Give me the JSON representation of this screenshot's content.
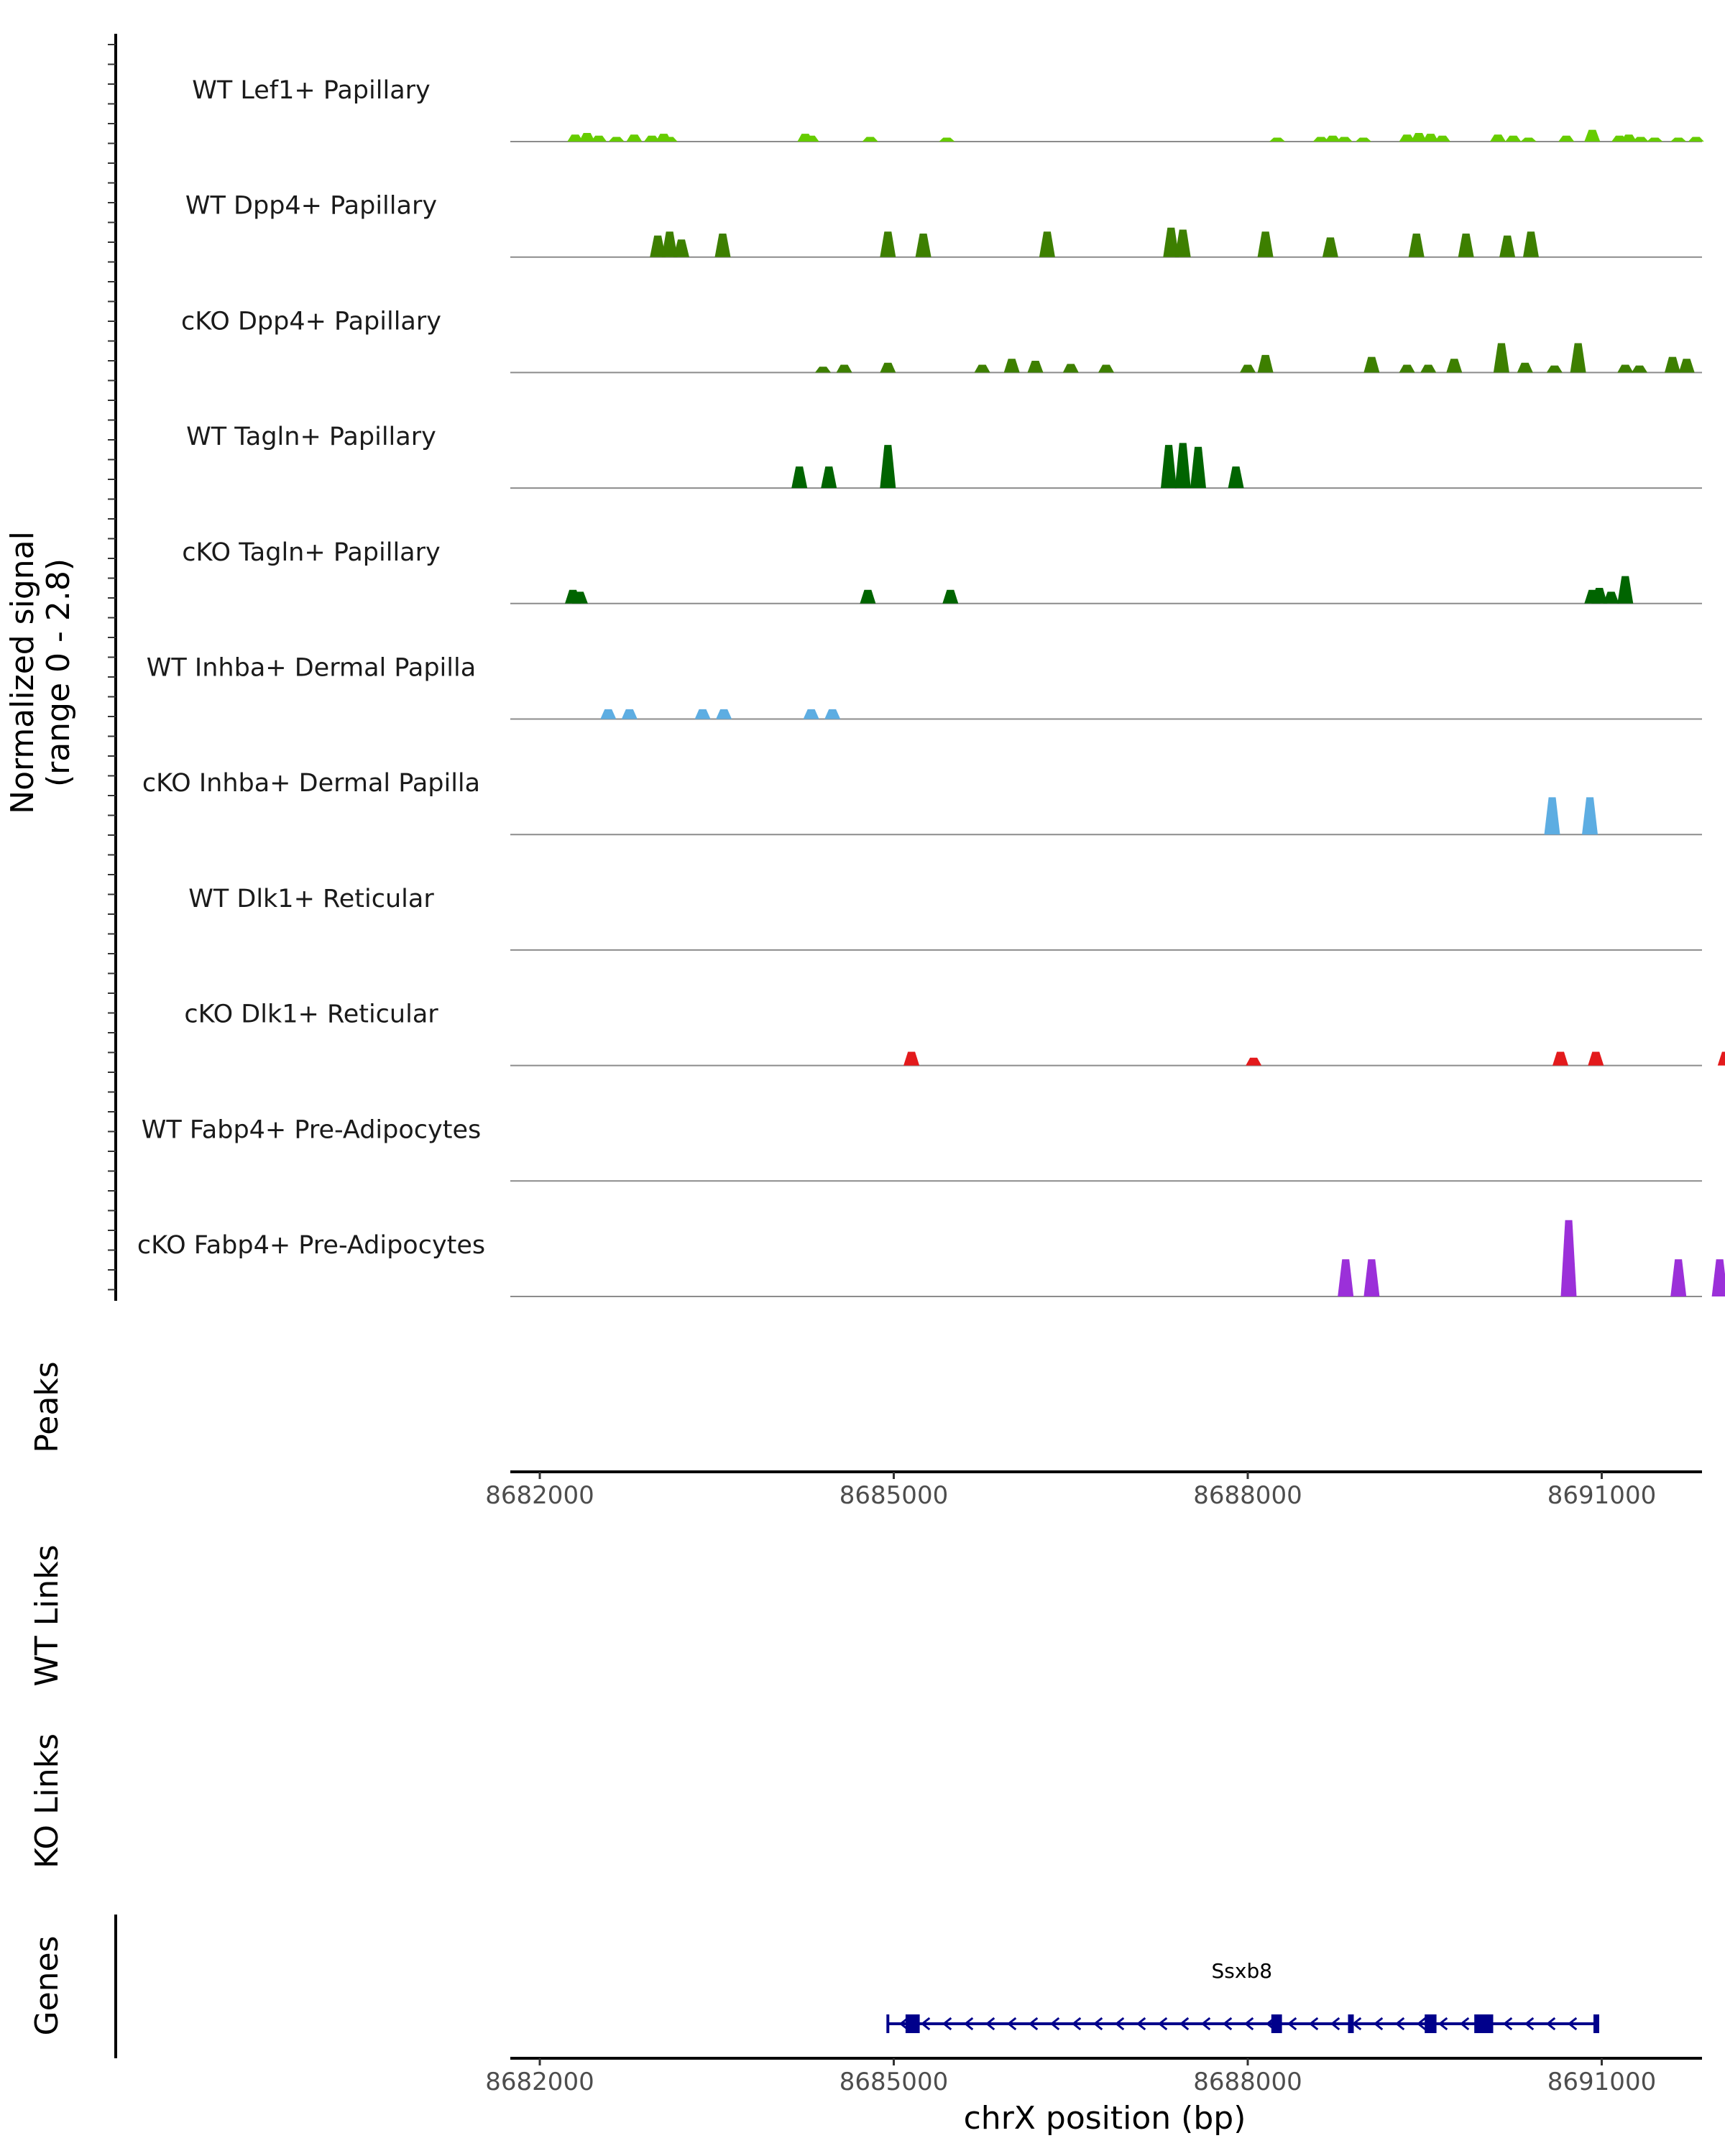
{
  "chart_data": {
    "type": "area",
    "title": "",
    "chromosome": "chrX",
    "xlabel": "chrX position (bp)",
    "xlim": [
      8681750,
      8691850
    ],
    "xticks": [
      8682000,
      8685000,
      8688000,
      8691000
    ],
    "xtick_labels": [
      "8682000",
      "8685000",
      "8688000",
      "8691000"
    ],
    "signal_ylabel": "Normalized signal\n(range 0 - 2.8)",
    "ylabel_line1": "Normalized signal",
    "ylabel_line2": "(range 0 - 2.8)",
    "ylim": [
      0,
      2.8
    ],
    "tracks": [
      {
        "name": "WT Lef1+ Papillary",
        "color": "#66cc00",
        "peaks": [
          [
            8682300,
            0.18
          ],
          [
            8682400,
            0.22
          ],
          [
            8682500,
            0.15
          ],
          [
            8682650,
            0.12
          ],
          [
            8682800,
            0.18
          ],
          [
            8682950,
            0.15
          ],
          [
            8683050,
            0.2
          ],
          [
            8683100,
            0.12
          ],
          [
            8684250,
            0.2
          ],
          [
            8684300,
            0.15
          ],
          [
            8684800,
            0.12
          ],
          [
            8685450,
            0.1
          ],
          [
            8688250,
            0.1
          ],
          [
            8688620,
            0.12
          ],
          [
            8688720,
            0.15
          ],
          [
            8688820,
            0.12
          ],
          [
            8688980,
            0.1
          ],
          [
            8689350,
            0.18
          ],
          [
            8689450,
            0.22
          ],
          [
            8689550,
            0.2
          ],
          [
            8689650,
            0.15
          ],
          [
            8690120,
            0.18
          ],
          [
            8690250,
            0.15
          ],
          [
            8690380,
            0.1
          ],
          [
            8690700,
            0.15
          ],
          [
            8690920,
            0.3
          ],
          [
            8691150,
            0.15
          ],
          [
            8691230,
            0.18
          ],
          [
            8691330,
            0.12
          ],
          [
            8691450,
            0.1
          ],
          [
            8691650,
            0.1
          ],
          [
            8691800,
            0.12
          ]
        ]
      },
      {
        "name": "WT Dpp4+ Papillary",
        "color": "#3d7f00",
        "peaks": [
          [
            8683000,
            0.55
          ],
          [
            8683100,
            0.65
          ],
          [
            8683200,
            0.45
          ],
          [
            8683550,
            0.6
          ],
          [
            8684950,
            0.65
          ],
          [
            8685250,
            0.6
          ],
          [
            8686300,
            0.65
          ],
          [
            8687350,
            0.75
          ],
          [
            8687450,
            0.7
          ],
          [
            8688150,
            0.65
          ],
          [
            8688700,
            0.5
          ],
          [
            8689430,
            0.6
          ],
          [
            8689850,
            0.6
          ],
          [
            8690200,
            0.55
          ],
          [
            8690400,
            0.65
          ]
        ]
      },
      {
        "name": "cKO Dpp4+ Papillary",
        "color": "#3d7f00",
        "peaks": [
          [
            8684400,
            0.15
          ],
          [
            8684580,
            0.2
          ],
          [
            8684950,
            0.25
          ],
          [
            8685750,
            0.2
          ],
          [
            8686000,
            0.35
          ],
          [
            8686200,
            0.3
          ],
          [
            8686500,
            0.22
          ],
          [
            8686800,
            0.2
          ],
          [
            8688000,
            0.2
          ],
          [
            8688150,
            0.45
          ],
          [
            8689050,
            0.4
          ],
          [
            8689350,
            0.2
          ],
          [
            8689530,
            0.2
          ],
          [
            8689750,
            0.35
          ],
          [
            8690150,
            0.75
          ],
          [
            8690350,
            0.25
          ],
          [
            8690600,
            0.18
          ],
          [
            8690800,
            0.75
          ],
          [
            8691200,
            0.2
          ],
          [
            8691320,
            0.18
          ],
          [
            8691600,
            0.4
          ],
          [
            8691720,
            0.35
          ]
        ]
      },
      {
        "name": "WT Tagln+ Papillary",
        "color": "#006400",
        "peaks": [
          [
            8684200,
            0.55
          ],
          [
            8684450,
            0.55
          ],
          [
            8684950,
            1.1
          ],
          [
            8687330,
            1.1
          ],
          [
            8687450,
            1.15
          ],
          [
            8687580,
            1.05
          ],
          [
            8687900,
            0.55
          ]
        ]
      },
      {
        "name": "cKO Tagln+ Papillary",
        "color": "#006400",
        "peaks": [
          [
            8682280,
            0.35
          ],
          [
            8682340,
            0.3
          ],
          [
            8684780,
            0.35
          ],
          [
            8685480,
            0.35
          ],
          [
            8690920,
            0.35
          ],
          [
            8690980,
            0.4
          ],
          [
            8691080,
            0.3
          ],
          [
            8691200,
            0.7
          ]
        ]
      },
      {
        "name": "WT Inhba+ Dermal Papilla",
        "color": "#5dade2",
        "peaks": [
          [
            8682580,
            0.25
          ],
          [
            8682760,
            0.25
          ],
          [
            8683380,
            0.25
          ],
          [
            8683560,
            0.25
          ],
          [
            8684300,
            0.25
          ],
          [
            8684480,
            0.25
          ]
        ]
      },
      {
        "name": "cKO Inhba+ Dermal Papilla",
        "color": "#5dade2",
        "peaks": [
          [
            8690580,
            0.95
          ],
          [
            8690900,
            0.95
          ]
        ]
      },
      {
        "name": "WT Dlk1+ Reticular",
        "color": "#e31a1c",
        "peaks": []
      },
      {
        "name": "cKO Dlk1+ Reticular",
        "color": "#e31a1c",
        "peaks": [
          [
            8685150,
            0.35
          ],
          [
            8688050,
            0.2
          ],
          [
            8690650,
            0.35
          ],
          [
            8690950,
            0.35
          ],
          [
            8692050,
            0.35
          ]
        ]
      },
      {
        "name": "WT Fabp4+ Pre-Adipocytes",
        "color": "#9b30d9",
        "peaks": []
      },
      {
        "name": "cKO Fabp4+ Pre-Adipocytes",
        "color": "#9b30d9",
        "peaks": [
          [
            8688830,
            0.95
          ],
          [
            8689050,
            0.95
          ],
          [
            8690720,
            1.95
          ],
          [
            8691650,
            0.95
          ],
          [
            8692000,
            0.95
          ]
        ]
      }
    ],
    "extra_tracks": [
      {
        "name": "Peaks"
      },
      {
        "name": "WT Links"
      },
      {
        "name": "KO Links"
      },
      {
        "name": "Genes"
      }
    ],
    "gene": {
      "name": "Ssxb8",
      "strand": "-",
      "start": 8684950,
      "end": 8690950,
      "color": "#00008b",
      "exons": [
        [
          8685100,
          8685220
        ],
        [
          8688200,
          8688290
        ],
        [
          8688850,
          8688880
        ],
        [
          8689500,
          8689600
        ],
        [
          8689920,
          8690080
        ],
        [
          8690930,
          8690960
        ]
      ]
    }
  }
}
